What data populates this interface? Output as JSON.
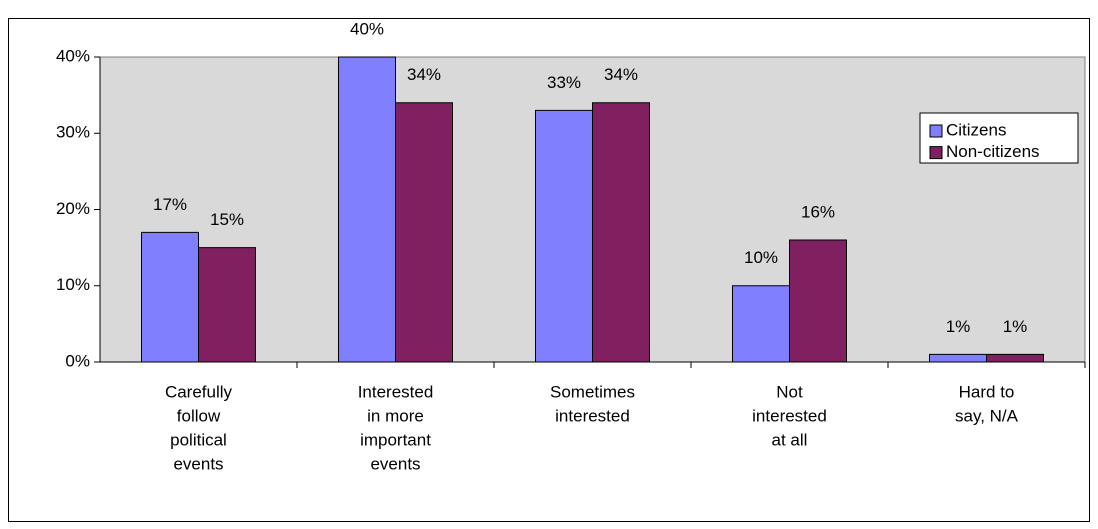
{
  "chart_data": {
    "type": "bar",
    "categories": [
      [
        "Carefully",
        "follow",
        "political",
        "events"
      ],
      [
        "Interested",
        "in more",
        "important",
        "events"
      ],
      [
        "Sometimes",
        "interested"
      ],
      [
        "Not",
        "interested",
        "at all"
      ],
      [
        "Hard to",
        "say, N/A"
      ]
    ],
    "series": [
      {
        "name": "Citizens",
        "color": "#8080ff",
        "values": [
          17,
          40,
          33,
          10,
          1
        ],
        "value_labels": [
          "17%",
          "40%",
          "33%",
          "10%",
          "1%"
        ]
      },
      {
        "name": "Non-citizens",
        "color": "#802060",
        "values": [
          15,
          34,
          34,
          16,
          1
        ],
        "value_labels": [
          "15%",
          "34%",
          "34%",
          "16%",
          "1%"
        ]
      }
    ],
    "ylim": [
      0,
      40
    ],
    "yticks": [
      {
        "value": 0,
        "label": "0%"
      },
      {
        "value": 10,
        "label": "10%"
      },
      {
        "value": 20,
        "label": "20%"
      },
      {
        "value": 30,
        "label": "30%"
      },
      {
        "value": 40,
        "label": "40%"
      }
    ],
    "legend": "right"
  }
}
